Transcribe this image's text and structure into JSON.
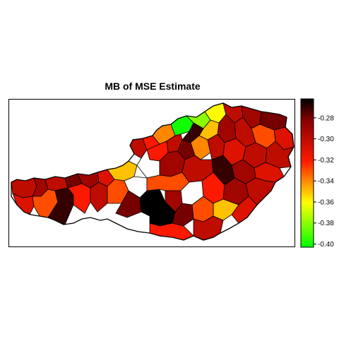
{
  "title": "MB of MSE Estimate",
  "legend": {
    "position": "right",
    "ticks": [
      "-0.28",
      "-0.30",
      "-0.32",
      "-0.34",
      "-0.36",
      "-0.38",
      "-0.40"
    ],
    "tick_values": [
      -0.28,
      -0.3,
      -0.32,
      -0.34,
      -0.36,
      -0.38,
      -0.4
    ],
    "range": [
      -0.403,
      -0.262
    ],
    "colors": [
      "#00ff00",
      "#ffff00",
      "#ff1a00",
      "#8b0000",
      "#000000"
    ]
  },
  "map": {
    "region": "Austria districts",
    "missing_color": "#ffffff",
    "district_values": [
      -0.3,
      -0.31,
      -0.29,
      -0.33,
      -0.3,
      -0.27,
      -0.28,
      -0.32,
      -0.29,
      -0.3,
      -0.31,
      -0.35,
      -0.33,
      -0.29,
      -0.28,
      -0.26,
      -0.3,
      -0.32,
      -0.34,
      -0.4,
      -0.38,
      -0.36,
      -0.3,
      -0.29,
      -0.28,
      -0.31,
      -0.33,
      -0.3,
      -0.29,
      -0.35,
      -0.27,
      -0.3,
      -0.32,
      -0.31,
      -0.29,
      -0.28,
      -0.34,
      -0.3,
      -0.31,
      -0.3
    ]
  }
}
